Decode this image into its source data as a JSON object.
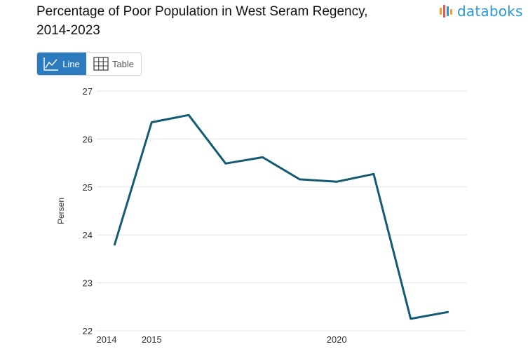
{
  "header": {
    "title_line1": "Percentage of Poor Population in West Seram Regency,",
    "title_line2": "2014-2023",
    "logo_text": "databoks"
  },
  "toggle": {
    "line_label": "Line",
    "table_label": "Table"
  },
  "colors": {
    "line": "#135b73",
    "grid": "#e3e3e3",
    "active_button": "#2d7bbf",
    "logo_bars": [
      "#f39b3a",
      "#e8554e",
      "#2a97d3"
    ]
  },
  "chart_data": {
    "type": "line",
    "title": "Percentage of Poor Population in West Seram Regency, 2014-2023",
    "ylabel": "Persen",
    "xlabel": "",
    "x": [
      2014,
      2015,
      2016,
      2017,
      2018,
      2019,
      2020,
      2021,
      2022,
      2023
    ],
    "x_tick_labels": [
      "2014",
      "2015",
      "2020"
    ],
    "x_tick_values": [
      2014,
      2015,
      2020
    ],
    "y_ticks": [
      22,
      23,
      24,
      25,
      26,
      27
    ],
    "ylim": [
      22,
      27
    ],
    "grid": true,
    "series": [
      {
        "values": [
          23.8,
          26.35,
          26.5,
          25.49,
          25.62,
          25.16,
          25.11,
          25.27,
          22.25,
          22.39
        ]
      }
    ]
  }
}
